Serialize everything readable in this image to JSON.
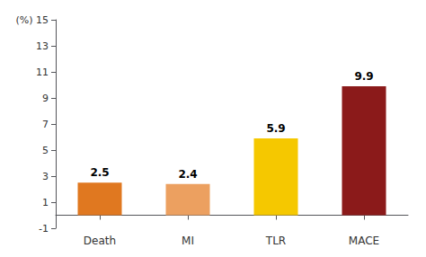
{
  "chart_data": {
    "type": "bar",
    "categories": [
      "Death",
      "MI",
      "TLR",
      "MACE"
    ],
    "values": [
      2.5,
      2.4,
      5.9,
      9.9
    ],
    "colors": [
      "#E07820",
      "#ECA060",
      "#F5C800",
      "#8B1A1A"
    ],
    "ylim": [
      -1,
      15
    ],
    "yticks": [
      -1,
      1,
      3,
      5,
      7,
      9,
      11,
      13,
      {
        "value": 15,
        "label": "(%) 15"
      }
    ],
    "data_labels": true,
    "grid": false
  }
}
